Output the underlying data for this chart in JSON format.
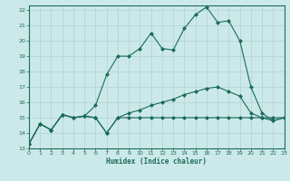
{
  "title": "",
  "xlabel": "Humidex (Indice chaleur)",
  "xlim": [
    0,
    23
  ],
  "ylim": [
    13,
    22.3
  ],
  "xticks": [
    0,
    1,
    2,
    3,
    4,
    5,
    6,
    7,
    8,
    9,
    10,
    11,
    12,
    13,
    14,
    15,
    16,
    17,
    18,
    19,
    20,
    21,
    22,
    23
  ],
  "yticks": [
    13,
    14,
    15,
    16,
    17,
    18,
    19,
    20,
    21,
    22
  ],
  "background_color": "#cce9e9",
  "line_color": "#1a6b5a",
  "grid_color": "#b8d8d8",
  "line1_x": [
    0,
    1,
    2,
    3,
    4,
    5,
    6,
    7,
    8,
    9,
    10,
    11,
    12,
    13,
    14,
    15,
    16,
    17,
    18,
    19,
    20,
    21,
    22,
    23
  ],
  "line1_y": [
    13.3,
    14.6,
    14.2,
    15.2,
    15.0,
    15.1,
    15.0,
    14.0,
    15.0,
    15.0,
    15.0,
    15.0,
    15.0,
    15.0,
    15.0,
    15.0,
    15.0,
    15.0,
    15.0,
    15.0,
    15.0,
    15.0,
    15.0,
    15.0
  ],
  "line2_x": [
    0,
    1,
    2,
    3,
    4,
    5,
    6,
    7,
    8,
    9,
    10,
    11,
    12,
    13,
    14,
    15,
    16,
    17,
    18,
    19,
    20,
    21,
    22,
    23
  ],
  "line2_y": [
    13.3,
    14.6,
    14.2,
    15.2,
    15.0,
    15.1,
    15.8,
    17.8,
    19.0,
    19.0,
    19.5,
    20.5,
    19.5,
    19.4,
    20.8,
    21.7,
    22.2,
    21.2,
    21.3,
    20.0,
    17.0,
    15.3,
    14.8,
    15.0
  ],
  "line3_x": [
    0,
    1,
    2,
    3,
    4,
    5,
    6,
    7,
    8,
    9,
    10,
    11,
    12,
    13,
    14,
    15,
    16,
    17,
    18,
    19,
    20,
    21,
    22,
    23
  ],
  "line3_y": [
    13.3,
    14.6,
    14.2,
    15.2,
    15.0,
    15.1,
    15.0,
    14.0,
    15.0,
    15.3,
    15.5,
    15.8,
    16.0,
    16.2,
    16.5,
    16.7,
    16.9,
    17.0,
    16.7,
    16.4,
    15.3,
    15.0,
    14.8,
    15.0
  ]
}
